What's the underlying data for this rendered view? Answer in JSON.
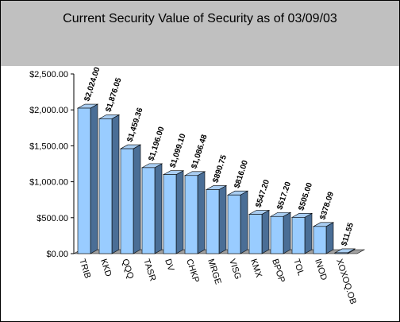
{
  "chart_data": {
    "type": "bar",
    "title": "Current Security Value of Security as of 03/09/03",
    "xlabel": "",
    "ylabel": "",
    "ylim": [
      0,
      2500
    ],
    "yticks": [
      "$0.00",
      "$500.00",
      "$1,000.00",
      "$1,500.00",
      "$2,000.00",
      "$2,500.00"
    ],
    "categories": [
      "TRIB",
      "KKD",
      "QQQ",
      "TASR",
      "DV",
      "CHKP",
      "MRGE",
      "VISG",
      "KMX",
      "BPOP",
      "TOL",
      "INOD",
      "XOXOQ.OB"
    ],
    "values": [
      2024.0,
      1876.05,
      1459.36,
      1196.0,
      1099.1,
      1086.48,
      890.75,
      816.0,
      547.2,
      517.2,
      505.0,
      378.09,
      11.55
    ],
    "data_labels": [
      "$2,024.00",
      "$1,876.05",
      "$1,459.36",
      "$1,196.00",
      "$1,099.10",
      "$1,086.48",
      "$890.75",
      "$816.00",
      "$547.20",
      "$517.20",
      "$505.00",
      "$378.09",
      "$11.55"
    ],
    "grid": false,
    "legend": "none",
    "colors": {
      "bar_front": "#99ccff",
      "bar_side": "#4a6e96",
      "bar_top": "#a9cdf1",
      "header_bg": "#c0c0c0",
      "floor": "#a0a0a0"
    }
  }
}
